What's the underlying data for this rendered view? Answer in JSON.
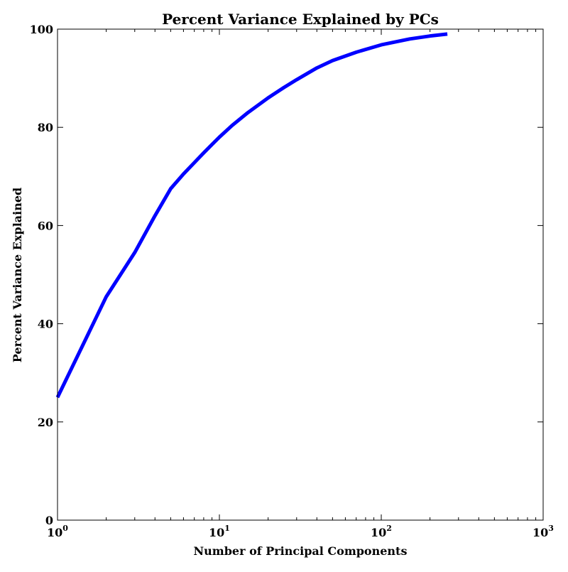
{
  "chart_data": {
    "type": "line",
    "title": "Percent Variance Explained by PCs",
    "xlabel": "Number of Principal Components",
    "ylabel": "Percent Variance Explained",
    "xscale": "log",
    "xlim": [
      1,
      1000
    ],
    "ylim": [
      0,
      100
    ],
    "grid": false,
    "legend": "none",
    "x_ticks": [
      {
        "value": 1,
        "base": "10",
        "exp": "0"
      },
      {
        "value": 10,
        "base": "10",
        "exp": "1"
      },
      {
        "value": 100,
        "base": "10",
        "exp": "2"
      },
      {
        "value": 1000,
        "base": "10",
        "exp": "3"
      }
    ],
    "y_ticks": [
      {
        "value": 0,
        "label": "0"
      },
      {
        "value": 20,
        "label": "20"
      },
      {
        "value": 40,
        "label": "40"
      },
      {
        "value": 60,
        "label": "60"
      },
      {
        "value": 80,
        "label": "80"
      },
      {
        "value": 100,
        "label": "100"
      }
    ],
    "series": [
      {
        "color": "#0000ff",
        "x": [
          1,
          2,
          3,
          4,
          5,
          6,
          7,
          8,
          9,
          10,
          12,
          15,
          20,
          25,
          30,
          40,
          50,
          70,
          100,
          150,
          200,
          256
        ],
        "y": [
          25,
          45.5,
          54.5,
          62,
          67.5,
          70.5,
          72.8,
          74.8,
          76.5,
          78,
          80.4,
          83,
          86,
          88.1,
          89.7,
          92.1,
          93.6,
          95.3,
          96.8,
          98,
          98.6,
          99
        ]
      }
    ]
  }
}
